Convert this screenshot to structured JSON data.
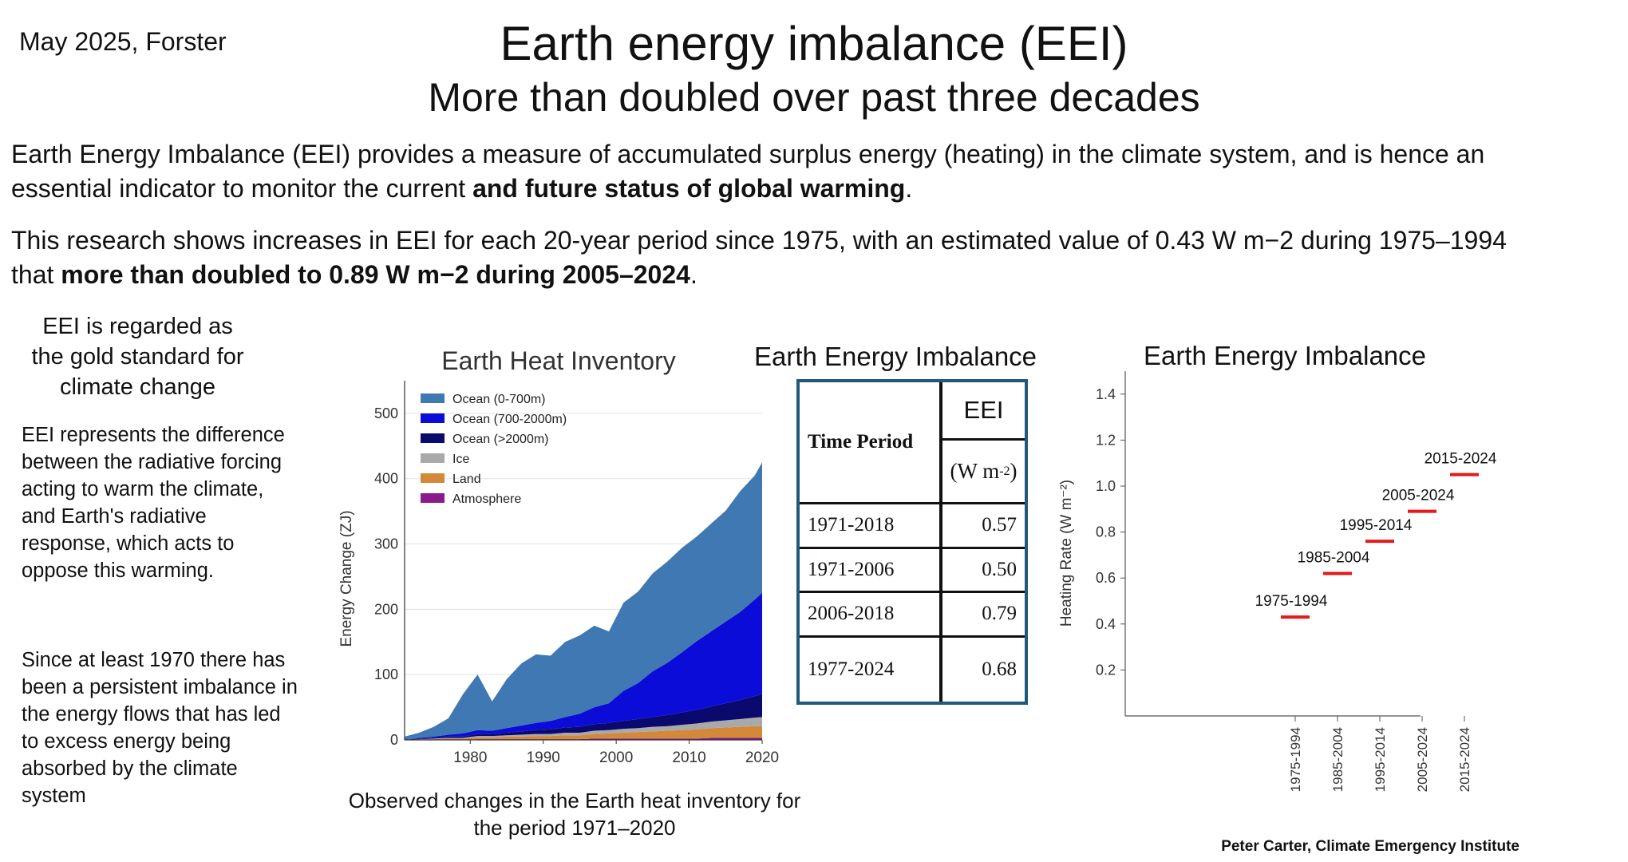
{
  "header": {
    "author_date": "May 2025, Forster",
    "title": "Earth energy imbalance (EEI)",
    "subtitle": "More than doubled over past three decades"
  },
  "intro": {
    "p1_plain": "Earth Energy Imbalance (EEI) provides a measure of accumulated surplus energy (heating) in the climate system, and is hence an essential indicator to monitor the current ",
    "p1_bold": "and future status of global warming",
    "p1_end": ".",
    "p2_plain": "This research shows increases in EEI for each 20-year period since 1975, with an estimated value of 0.43 W m−2 during 1975–1994 that ",
    "p2_bold": "more than doubled to 0.89 W m−2 during 2005–2024",
    "p2_end": "."
  },
  "side": {
    "gold": "EEI is regarded as the gold standard for climate change",
    "text1": "EEI represents the difference between the radiative forcing acting to warm the climate, and Earth's radiative response, which acts to oppose this warming.",
    "text2": "Since at least 1970 there has been a persistent imbalance in the energy flows that has led to excess energy being absorbed by the climate system"
  },
  "caption": "Observed changes in the Earth heat inventory for the period 1971–2020",
  "credit": "Peter Carter, Climate Emergency Institute",
  "table": {
    "title": "Earth Energy Imbalance",
    "col1": "Time Period",
    "col2": "EEI",
    "unit": "(W m",
    "unit_sup": "-2",
    "unit_end": ")",
    "rows": [
      {
        "period": "1971-2018",
        "value": "0.57"
      },
      {
        "period": "1971-2006",
        "value": "0.50"
      },
      {
        "period": "2006-2018",
        "value": "0.79"
      },
      {
        "period": "1977-2024",
        "value": "0.68"
      }
    ]
  },
  "chart_data": [
    {
      "type": "area",
      "title": "Earth Heat Inventory",
      "xlabel": "",
      "ylabel": "Energy Change (ZJ)",
      "xlim": [
        1971,
        2020
      ],
      "ylim": [
        0,
        550
      ],
      "xticks": [
        1980,
        1990,
        2000,
        2010,
        2020
      ],
      "yticks": [
        0,
        100,
        200,
        300,
        400,
        500
      ],
      "grid": true,
      "legend": "top-left",
      "stacked": true,
      "x": [
        1971,
        1973,
        1975,
        1977,
        1979,
        1981,
        1983,
        1985,
        1987,
        1989,
        1991,
        1993,
        1995,
        1997,
        1999,
        2001,
        2003,
        2005,
        2007,
        2009,
        2011,
        2013,
        2015,
        2017,
        2019,
        2020
      ],
      "series": [
        {
          "name": "Atmosphere",
          "color": "#8b1a8b",
          "values": [
            0,
            0,
            0,
            0,
            0,
            1,
            1,
            1,
            1,
            1,
            1,
            1,
            1,
            2,
            2,
            2,
            2,
            2,
            2,
            2,
            2,
            3,
            3,
            3,
            3,
            3
          ]
        },
        {
          "name": "Land",
          "color": "#d4883a",
          "values": [
            0,
            1,
            1,
            2,
            2,
            3,
            3,
            4,
            4,
            5,
            5,
            6,
            6,
            7,
            8,
            9,
            10,
            11,
            12,
            13,
            14,
            15,
            16,
            17,
            18,
            18
          ]
        },
        {
          "name": "Ice",
          "color": "#a9a9a9",
          "values": [
            0,
            0,
            1,
            1,
            1,
            2,
            2,
            2,
            3,
            3,
            3,
            4,
            4,
            5,
            5,
            6,
            6,
            7,
            7,
            8,
            9,
            10,
            11,
            12,
            13,
            14
          ]
        },
        {
          "name": "Ocean (>2000m)",
          "color": "#0a0a6e",
          "values": [
            0,
            1,
            1,
            2,
            2,
            3,
            3,
            4,
            5,
            6,
            7,
            8,
            9,
            10,
            11,
            12,
            14,
            15,
            17,
            19,
            21,
            23,
            26,
            29,
            33,
            35
          ]
        },
        {
          "name": "Ocean (700-2000m)",
          "color": "#0c0cd8",
          "values": [
            0,
            1,
            2,
            3,
            5,
            6,
            5,
            7,
            9,
            11,
            13,
            16,
            20,
            26,
            30,
            46,
            55,
            70,
            80,
            92,
            105,
            115,
            125,
            135,
            148,
            155
          ]
        },
        {
          "name": "Ocean (0-700m)",
          "color": "#3f78b3",
          "values": [
            5,
            8,
            15,
            25,
            60,
            85,
            45,
            75,
            95,
            105,
            100,
            115,
            120,
            125,
            110,
            135,
            140,
            150,
            155,
            160,
            160,
            165,
            170,
            185,
            190,
            200
          ]
        }
      ]
    },
    {
      "type": "scatter",
      "title": "Earth Energy Imbalance",
      "xlabel": "",
      "ylabel": "Heating Rate (W m⁻²)",
      "ylim": [
        0,
        1.5
      ],
      "yticks": [
        0.2,
        0.4,
        0.6,
        0.8,
        1.0,
        1.2,
        1.4
      ],
      "categories": [
        "1975-1994",
        "1985-2004",
        "1995-2014",
        "2005-2024",
        "2015-2024"
      ],
      "values": [
        0.43,
        0.62,
        0.76,
        0.89,
        1.05
      ],
      "marker_color": "#e41a1c",
      "grid": false
    }
  ]
}
